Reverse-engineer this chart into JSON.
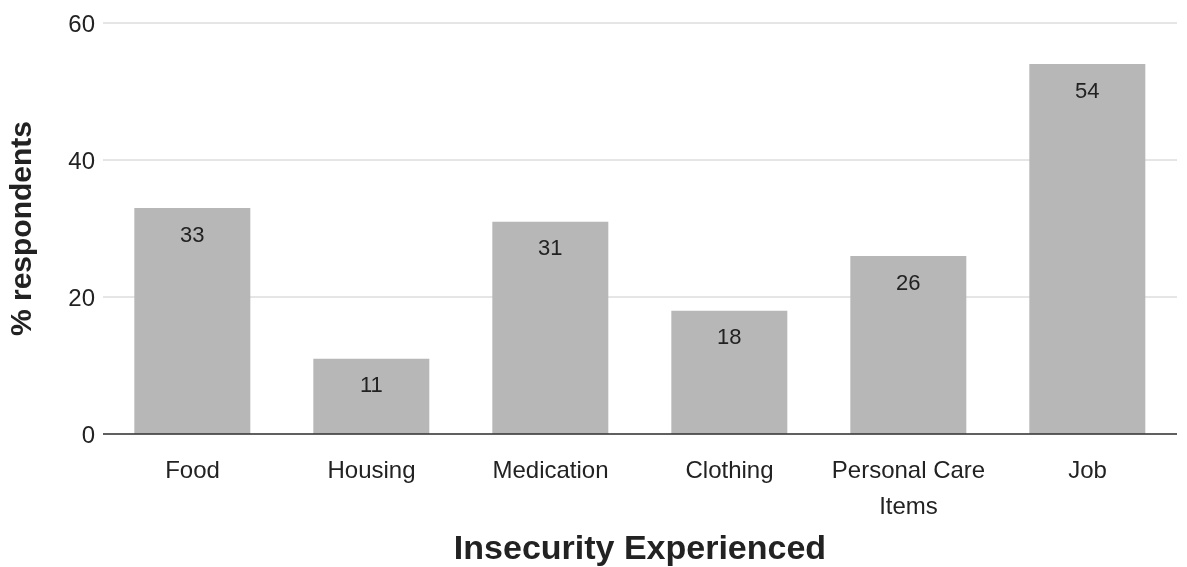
{
  "chart_data": {
    "type": "bar",
    "xlabel": "Insecurity Experienced",
    "ylabel": "% respondents",
    "categories": [
      "Food",
      "Housing",
      "Medication",
      "Clothing",
      "Personal Care Items",
      "Job"
    ],
    "values": [
      33,
      11,
      31,
      18,
      26,
      54
    ],
    "color": "#b7b7b7",
    "ylim": [
      0,
      60
    ],
    "yticks": [
      0,
      20,
      40,
      60
    ],
    "grid": "y",
    "data_labels": true
  }
}
